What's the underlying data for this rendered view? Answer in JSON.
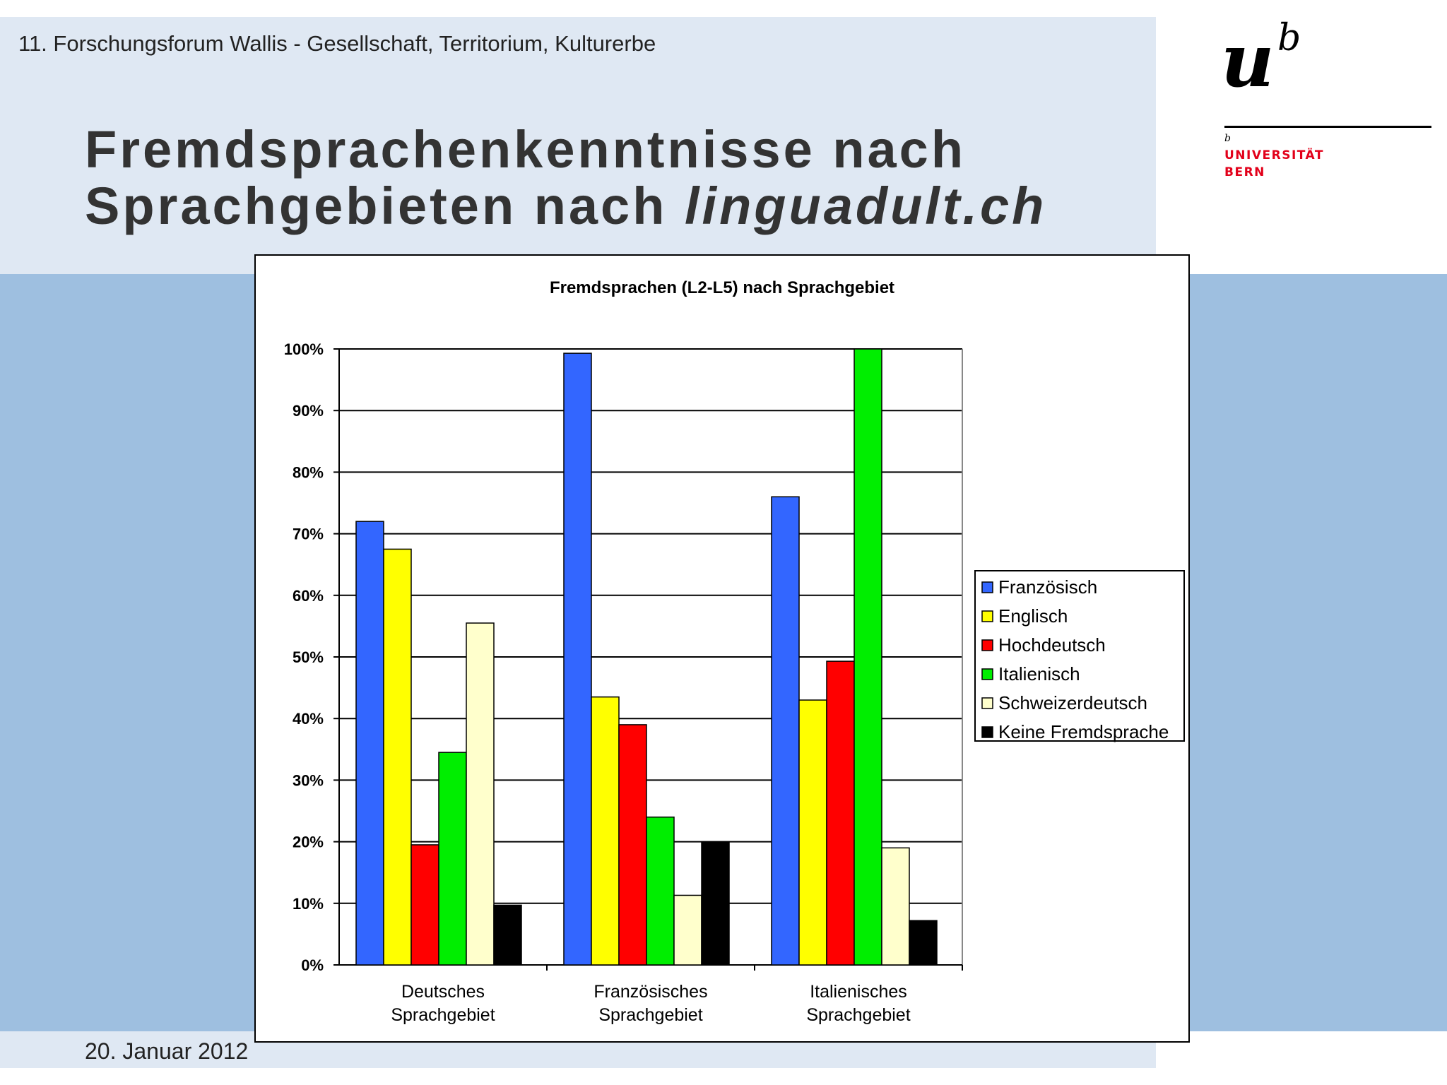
{
  "slide": {
    "forum": "11. Forschungsforum Wallis - Gesellschaft, Territorium, Kulturerbe",
    "title_line1": "Fremdsprachenkenntnisse nach",
    "title_line2_plain": "Sprachgebieten nach ",
    "title_line2_italic": "linguadult.ch",
    "date": "20. Januar 2012"
  },
  "logo": {
    "mark_u": "u",
    "mark_b": "b",
    "small_b": "b",
    "name_line1": "UNIVERSITÄT",
    "name_line2": "BERN"
  },
  "colors": {
    "top_band": "#dfe8f3",
    "mid_band": "#9ebfe0",
    "logo_red": "#e2001a"
  },
  "chart_data": {
    "type": "bar",
    "title": "Fremdsprachen (L2-L5) nach Sprachgebiet",
    "categories": [
      [
        "Deutsches",
        "Sprachgebiet"
      ],
      [
        "Französisches",
        "Sprachgebiet"
      ],
      [
        "Italienisches",
        "Sprachgebiet"
      ]
    ],
    "ylim": [
      0,
      100
    ],
    "yticks": [
      "0%",
      "10%",
      "20%",
      "30%",
      "40%",
      "50%",
      "60%",
      "70%",
      "80%",
      "90%",
      "100%"
    ],
    "grid": true,
    "legend_position": "right",
    "series": [
      {
        "name": "Französisch",
        "color": "#3366ff",
        "values": [
          72,
          99.3,
          76
        ]
      },
      {
        "name": "Englisch",
        "color": "#ffff00",
        "values": [
          67.5,
          43.5,
          43
        ]
      },
      {
        "name": "Hochdeutsch",
        "color": "#ff0000",
        "values": [
          19.5,
          39,
          49.3
        ]
      },
      {
        "name": "Italienisch",
        "color": "#00ee00",
        "values": [
          34.5,
          24,
          100
        ]
      },
      {
        "name": "Schweizerdeutsch",
        "color": "#ffffcc",
        "values": [
          55.5,
          11.3,
          19
        ]
      },
      {
        "name": "Keine Fremdsprache",
        "color": "#000000",
        "values": [
          9.7,
          20,
          7.2
        ]
      }
    ]
  }
}
